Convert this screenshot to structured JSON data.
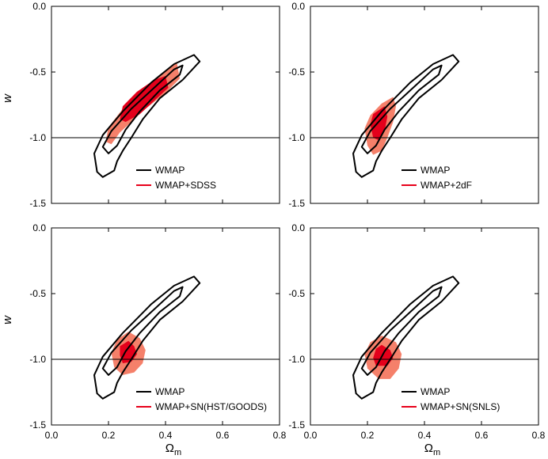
{
  "chart_data": [
    {
      "type": "contour",
      "panel": "top-left",
      "xlim": [
        0.0,
        0.8
      ],
      "ylim": [
        -1.5,
        0.0
      ],
      "xticks": [
        "0.0",
        "0.2",
        "0.4",
        "0.6",
        "0.8"
      ],
      "yticks": [
        "0.0",
        "-0.5",
        "-1.0",
        "-1.5"
      ],
      "xlabel": "",
      "ylabel": "w",
      "reference_line_w": -1.0,
      "legend": [
        {
          "label": "WMAP",
          "color": "#000000"
        },
        {
          "label": "WMAP+SDSS",
          "color": "#e8001a"
        }
      ],
      "series": [
        {
          "name": "WMAP",
          "kind": "outline",
          "contour": "outer",
          "polygon": [
            [
              0.5,
              -0.37
            ],
            [
              0.52,
              -0.42
            ],
            [
              0.46,
              -0.56
            ],
            [
              0.38,
              -0.7
            ],
            [
              0.32,
              -0.86
            ],
            [
              0.28,
              -1.0
            ],
            [
              0.25,
              -1.1
            ],
            [
              0.23,
              -1.18
            ],
            [
              0.22,
              -1.25
            ],
            [
              0.18,
              -1.3
            ],
            [
              0.16,
              -1.26
            ],
            [
              0.15,
              -1.12
            ],
            [
              0.18,
              -0.98
            ],
            [
              0.25,
              -0.8
            ],
            [
              0.35,
              -0.58
            ],
            [
              0.43,
              -0.44
            ]
          ]
        },
        {
          "name": "WMAP",
          "kind": "outline",
          "contour": "inner",
          "polygon": [
            [
              0.46,
              -0.45
            ],
            [
              0.45,
              -0.52
            ],
            [
              0.38,
              -0.64
            ],
            [
              0.31,
              -0.8
            ],
            [
              0.26,
              -0.94
            ],
            [
              0.23,
              -1.06
            ],
            [
              0.2,
              -1.12
            ],
            [
              0.18,
              -1.07
            ],
            [
              0.21,
              -0.95
            ],
            [
              0.28,
              -0.78
            ],
            [
              0.37,
              -0.6
            ],
            [
              0.43,
              -0.48
            ]
          ]
        },
        {
          "name": "WMAP+SDSS",
          "kind": "fill",
          "contour": "outer",
          "polygon": [
            [
              0.44,
              -0.43
            ],
            [
              0.45,
              -0.55
            ],
            [
              0.4,
              -0.66
            ],
            [
              0.33,
              -0.78
            ],
            [
              0.28,
              -0.88
            ],
            [
              0.24,
              -0.96
            ],
            [
              0.21,
              -1.05
            ],
            [
              0.19,
              -1.03
            ],
            [
              0.2,
              -0.92
            ],
            [
              0.25,
              -0.78
            ],
            [
              0.31,
              -0.65
            ],
            [
              0.38,
              -0.52
            ]
          ]
        },
        {
          "name": "WMAP+SDSS",
          "kind": "fill",
          "contour": "inner",
          "polygon": [
            [
              0.4,
              -0.53
            ],
            [
              0.41,
              -0.62
            ],
            [
              0.36,
              -0.72
            ],
            [
              0.31,
              -0.82
            ],
            [
              0.26,
              -0.88
            ],
            [
              0.24,
              -0.86
            ],
            [
              0.25,
              -0.76
            ],
            [
              0.3,
              -0.65
            ],
            [
              0.36,
              -0.56
            ]
          ]
        }
      ]
    },
    {
      "type": "contour",
      "panel": "top-right",
      "xlim": [
        0.0,
        0.8
      ],
      "ylim": [
        -1.5,
        0.0
      ],
      "xticks": [
        "0.0",
        "0.2",
        "0.4",
        "0.6",
        "0.8"
      ],
      "yticks": [
        "0.0",
        "-0.5",
        "-1.0",
        "-1.5"
      ],
      "xlabel": "",
      "ylabel": "",
      "reference_line_w": -1.0,
      "legend": [
        {
          "label": "WMAP",
          "color": "#000000"
        },
        {
          "label": "WMAP+2dF",
          "color": "#e8001a"
        }
      ],
      "series": [
        {
          "name": "WMAP",
          "kind": "outline",
          "contour": "outer",
          "polygon": [
            [
              0.5,
              -0.37
            ],
            [
              0.52,
              -0.42
            ],
            [
              0.46,
              -0.56
            ],
            [
              0.38,
              -0.7
            ],
            [
              0.32,
              -0.86
            ],
            [
              0.28,
              -1.0
            ],
            [
              0.25,
              -1.1
            ],
            [
              0.23,
              -1.18
            ],
            [
              0.22,
              -1.25
            ],
            [
              0.18,
              -1.3
            ],
            [
              0.16,
              -1.26
            ],
            [
              0.15,
              -1.12
            ],
            [
              0.18,
              -0.98
            ],
            [
              0.25,
              -0.8
            ],
            [
              0.35,
              -0.58
            ],
            [
              0.43,
              -0.44
            ]
          ]
        },
        {
          "name": "WMAP",
          "kind": "outline",
          "contour": "inner",
          "polygon": [
            [
              0.46,
              -0.45
            ],
            [
              0.45,
              -0.52
            ],
            [
              0.38,
              -0.64
            ],
            [
              0.31,
              -0.8
            ],
            [
              0.26,
              -0.94
            ],
            [
              0.23,
              -1.06
            ],
            [
              0.2,
              -1.12
            ],
            [
              0.18,
              -1.07
            ],
            [
              0.21,
              -0.95
            ],
            [
              0.28,
              -0.78
            ],
            [
              0.37,
              -0.6
            ],
            [
              0.43,
              -0.48
            ]
          ]
        },
        {
          "name": "WMAP+2dF",
          "kind": "fill",
          "contour": "outer",
          "polygon": [
            [
              0.29,
              -0.69
            ],
            [
              0.3,
              -0.76
            ],
            [
              0.29,
              -0.88
            ],
            [
              0.27,
              -1.0
            ],
            [
              0.25,
              -1.1
            ],
            [
              0.22,
              -1.13
            ],
            [
              0.2,
              -1.06
            ],
            [
              0.19,
              -0.93
            ],
            [
              0.21,
              -0.83
            ],
            [
              0.25,
              -0.74
            ]
          ]
        },
        {
          "name": "WMAP+2dF",
          "kind": "fill",
          "contour": "inner",
          "polygon": [
            [
              0.26,
              -0.76
            ],
            [
              0.27,
              -0.84
            ],
            [
              0.26,
              -0.95
            ],
            [
              0.24,
              -1.02
            ],
            [
              0.22,
              -1.0
            ],
            [
              0.21,
              -0.9
            ],
            [
              0.22,
              -0.82
            ]
          ]
        }
      ]
    },
    {
      "type": "contour",
      "panel": "bottom-left",
      "xlim": [
        0.0,
        0.8
      ],
      "ylim": [
        -1.5,
        0.0
      ],
      "xticks": [
        "0.0",
        "0.2",
        "0.4",
        "0.6",
        "0.8"
      ],
      "yticks": [
        "0.0",
        "-0.5",
        "-1.0",
        "-1.5"
      ],
      "xlabel": "Ωm",
      "ylabel": "w",
      "reference_line_w": -1.0,
      "legend": [
        {
          "label": "WMAP",
          "color": "#000000"
        },
        {
          "label": "WMAP+SN(HST/GOODS)",
          "color": "#e8001a"
        }
      ],
      "series": [
        {
          "name": "WMAP",
          "kind": "outline",
          "contour": "outer",
          "polygon": [
            [
              0.5,
              -0.37
            ],
            [
              0.52,
              -0.42
            ],
            [
              0.46,
              -0.56
            ],
            [
              0.38,
              -0.7
            ],
            [
              0.32,
              -0.86
            ],
            [
              0.28,
              -1.0
            ],
            [
              0.25,
              -1.1
            ],
            [
              0.23,
              -1.18
            ],
            [
              0.22,
              -1.25
            ],
            [
              0.18,
              -1.3
            ],
            [
              0.16,
              -1.26
            ],
            [
              0.15,
              -1.12
            ],
            [
              0.18,
              -0.98
            ],
            [
              0.25,
              -0.8
            ],
            [
              0.35,
              -0.58
            ],
            [
              0.43,
              -0.44
            ]
          ]
        },
        {
          "name": "WMAP",
          "kind": "outline",
          "contour": "inner",
          "polygon": [
            [
              0.46,
              -0.45
            ],
            [
              0.45,
              -0.52
            ],
            [
              0.38,
              -0.64
            ],
            [
              0.31,
              -0.8
            ],
            [
              0.26,
              -0.94
            ],
            [
              0.23,
              -1.06
            ],
            [
              0.2,
              -1.12
            ],
            [
              0.18,
              -1.07
            ],
            [
              0.21,
              -0.95
            ],
            [
              0.28,
              -0.78
            ],
            [
              0.37,
              -0.6
            ],
            [
              0.43,
              -0.48
            ]
          ]
        },
        {
          "name": "WMAP+SN(HST/GOODS)",
          "kind": "fill",
          "contour": "outer",
          "polygon": [
            [
              0.27,
              -0.79
            ],
            [
              0.31,
              -0.84
            ],
            [
              0.33,
              -0.93
            ],
            [
              0.32,
              -1.03
            ],
            [
              0.29,
              -1.1
            ],
            [
              0.25,
              -1.12
            ],
            [
              0.22,
              -1.06
            ],
            [
              0.21,
              -0.95
            ],
            [
              0.23,
              -0.85
            ]
          ]
        },
        {
          "name": "WMAP+SN(HST/GOODS)",
          "kind": "fill",
          "contour": "inner",
          "polygon": [
            [
              0.27,
              -0.86
            ],
            [
              0.29,
              -0.9
            ],
            [
              0.3,
              -0.96
            ],
            [
              0.28,
              -1.02
            ],
            [
              0.25,
              -1.03
            ],
            [
              0.24,
              -0.97
            ],
            [
              0.24,
              -0.9
            ]
          ]
        }
      ]
    },
    {
      "type": "contour",
      "panel": "bottom-right",
      "xlim": [
        0.0,
        0.8
      ],
      "ylim": [
        -1.5,
        0.0
      ],
      "xticks": [
        "0.0",
        "0.2",
        "0.4",
        "0.6",
        "0.8"
      ],
      "yticks": [
        "0.0",
        "-0.5",
        "-1.0",
        "-1.5"
      ],
      "xlabel": "Ωm",
      "ylabel": "",
      "reference_line_w": -1.0,
      "legend": [
        {
          "label": "WMAP",
          "color": "#000000"
        },
        {
          "label": "WMAP+SN(SNLS)",
          "color": "#e8001a"
        }
      ],
      "series": [
        {
          "name": "WMAP",
          "kind": "outline",
          "contour": "outer",
          "polygon": [
            [
              0.5,
              -0.37
            ],
            [
              0.52,
              -0.42
            ],
            [
              0.46,
              -0.56
            ],
            [
              0.38,
              -0.7
            ],
            [
              0.32,
              -0.86
            ],
            [
              0.28,
              -1.0
            ],
            [
              0.25,
              -1.1
            ],
            [
              0.23,
              -1.18
            ],
            [
              0.22,
              -1.25
            ],
            [
              0.18,
              -1.3
            ],
            [
              0.16,
              -1.26
            ],
            [
              0.15,
              -1.12
            ],
            [
              0.18,
              -0.98
            ],
            [
              0.25,
              -0.8
            ],
            [
              0.35,
              -0.58
            ],
            [
              0.43,
              -0.44
            ]
          ]
        },
        {
          "name": "WMAP",
          "kind": "outline",
          "contour": "inner",
          "polygon": [
            [
              0.46,
              -0.45
            ],
            [
              0.45,
              -0.52
            ],
            [
              0.38,
              -0.64
            ],
            [
              0.31,
              -0.8
            ],
            [
              0.26,
              -0.94
            ],
            [
              0.23,
              -1.06
            ],
            [
              0.2,
              -1.12
            ],
            [
              0.18,
              -1.07
            ],
            [
              0.21,
              -0.95
            ],
            [
              0.28,
              -0.78
            ],
            [
              0.37,
              -0.6
            ],
            [
              0.43,
              -0.48
            ]
          ]
        },
        {
          "name": "WMAP+SN(SNLS)",
          "kind": "fill",
          "contour": "outer",
          "polygon": [
            [
              0.25,
              -0.82
            ],
            [
              0.3,
              -0.87
            ],
            [
              0.32,
              -0.96
            ],
            [
              0.31,
              -1.07
            ],
            [
              0.28,
              -1.15
            ],
            [
              0.24,
              -1.15
            ],
            [
              0.2,
              -1.07
            ],
            [
              0.19,
              -0.96
            ],
            [
              0.21,
              -0.87
            ]
          ]
        },
        {
          "name": "WMAP+SN(SNLS)",
          "kind": "fill",
          "contour": "inner",
          "polygon": [
            [
              0.25,
              -0.89
            ],
            [
              0.28,
              -0.93
            ],
            [
              0.29,
              -0.99
            ],
            [
              0.27,
              -1.05
            ],
            [
              0.23,
              -1.05
            ],
            [
              0.22,
              -0.99
            ],
            [
              0.23,
              -0.92
            ]
          ]
        }
      ]
    }
  ],
  "style": {
    "wmap_line": "#000000",
    "fill_outer": "#f5806a",
    "fill_inner": "#e4001b",
    "reference_line": "#000000",
    "legend_red": "#e8001a"
  }
}
